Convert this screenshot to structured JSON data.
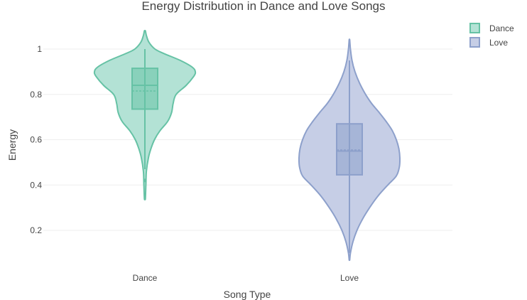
{
  "chart_data": {
    "type": "violin",
    "title": "Energy Distribution in Dance and Love Songs",
    "xlabel": "Song Type",
    "ylabel": "Energy",
    "categories": [
      "Dance",
      "Love"
    ],
    "yticks": [
      0.2,
      0.4,
      0.6,
      0.8,
      1
    ],
    "ytick_labels": [
      "0.2",
      "0.4",
      "0.6",
      "0.8",
      "1"
    ],
    "ylim": [
      0.02,
      1.1
    ],
    "grid": true,
    "legend": {
      "placement": "top-right",
      "entries": [
        "Dance",
        "Love"
      ]
    },
    "series": [
      {
        "name": "Dance",
        "color": "#66c2a5",
        "fill": "#b3e2d5",
        "box": {
          "q1": 0.735,
          "median": 0.84,
          "q3": 0.915,
          "mean": 0.815,
          "whisker_low": 0.47,
          "whisker_high": 1.0
        },
        "outliers": [
          0.42
        ],
        "density": [
          [
            0.34,
            0.01
          ],
          [
            0.4,
            0.02
          ],
          [
            0.46,
            0.03
          ],
          [
            0.52,
            0.07
          ],
          [
            0.56,
            0.12
          ],
          [
            0.6,
            0.19
          ],
          [
            0.64,
            0.3
          ],
          [
            0.68,
            0.45
          ],
          [
            0.72,
            0.53
          ],
          [
            0.76,
            0.56
          ],
          [
            0.8,
            0.62
          ],
          [
            0.84,
            0.82
          ],
          [
            0.88,
            0.97
          ],
          [
            0.9,
            1.0
          ],
          [
            0.92,
            0.94
          ],
          [
            0.95,
            0.7
          ],
          [
            0.98,
            0.38
          ],
          [
            1.0,
            0.2
          ],
          [
            1.03,
            0.08
          ],
          [
            1.06,
            0.03
          ],
          [
            1.08,
            0.01
          ]
        ]
      },
      {
        "name": "Love",
        "color": "#8da0cb",
        "fill": "#c6cee6",
        "box": {
          "q1": 0.445,
          "median": 0.55,
          "q3": 0.67,
          "mean": 0.555,
          "whisker_low": 0.1,
          "whisker_high": 0.95
        },
        "outliers": [],
        "density": [
          [
            0.07,
            0.005
          ],
          [
            0.1,
            0.02
          ],
          [
            0.15,
            0.07
          ],
          [
            0.2,
            0.15
          ],
          [
            0.25,
            0.26
          ],
          [
            0.3,
            0.4
          ],
          [
            0.35,
            0.56
          ],
          [
            0.4,
            0.76
          ],
          [
            0.44,
            0.93
          ],
          [
            0.48,
            0.99
          ],
          [
            0.52,
            1.0
          ],
          [
            0.56,
            0.98
          ],
          [
            0.6,
            0.93
          ],
          [
            0.64,
            0.85
          ],
          [
            0.68,
            0.73
          ],
          [
            0.72,
            0.59
          ],
          [
            0.76,
            0.44
          ],
          [
            0.8,
            0.32
          ],
          [
            0.85,
            0.2
          ],
          [
            0.9,
            0.11
          ],
          [
            0.95,
            0.05
          ],
          [
            1.0,
            0.02
          ],
          [
            1.04,
            0.005
          ]
        ]
      }
    ]
  }
}
